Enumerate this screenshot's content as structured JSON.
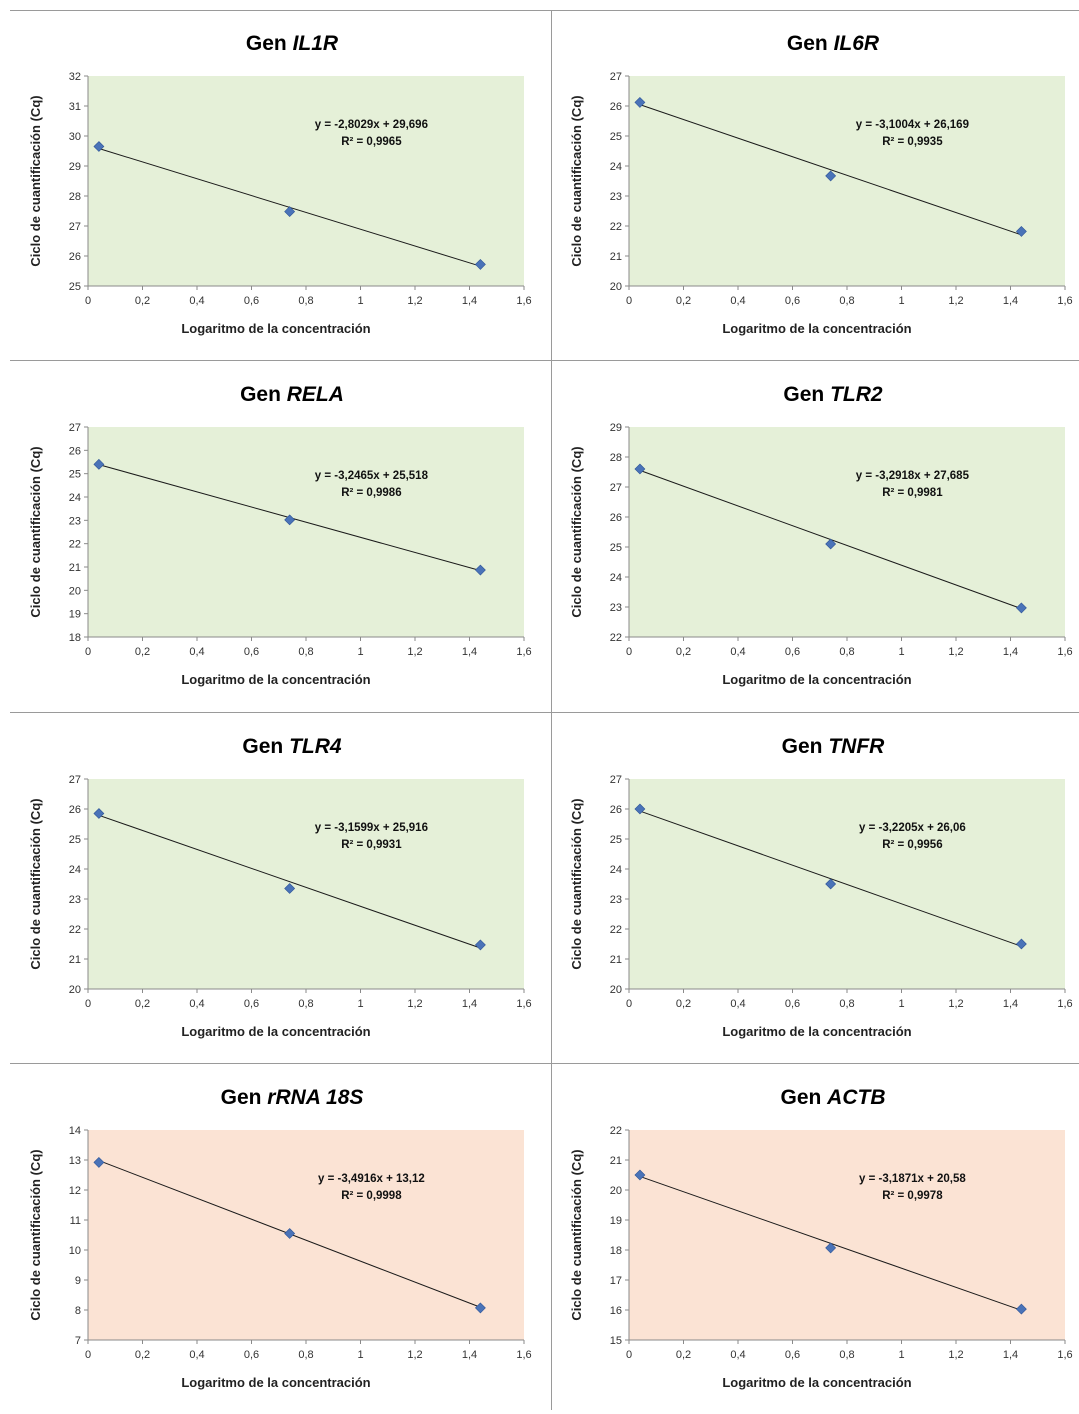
{
  "chart_data": [
    {
      "type": "scatter",
      "title_prefix": "Gen ",
      "title_gene": "IL1R",
      "xlabel": "Logaritmo de la concentración",
      "ylabel": "Ciclo de cuantificación (Cq)",
      "xlim": [
        0,
        1.6
      ],
      "ylim": [
        25,
        32
      ],
      "x_ticks": [
        "0",
        "0,2",
        "0,4",
        "0,6",
        "0,8",
        "1",
        "1,2",
        "1,4",
        "1,6"
      ],
      "y_ticks": [
        "25",
        "26",
        "27",
        "28",
        "29",
        "30",
        "31",
        "32"
      ],
      "series": [
        {
          "x": [
            0.04,
            0.74,
            1.44
          ],
          "y": [
            29.65,
            27.48,
            25.72
          ]
        }
      ],
      "trendline": {
        "slope": -2.8029,
        "intercept": 29.696
      },
      "equation": "y = -2,8029x + 29,696",
      "r_squared": "R² = 0,9965",
      "plot_color": "#e5f0d8",
      "marker_color": "#4a73b8"
    },
    {
      "type": "scatter",
      "title_prefix": "Gen ",
      "title_gene": "IL6R",
      "xlabel": "Logaritmo de la concentración",
      "ylabel": "Ciclo de cuantificación (Cq)",
      "xlim": [
        0,
        1.6
      ],
      "ylim": [
        20,
        27
      ],
      "x_ticks": [
        "0",
        "0,2",
        "0,4",
        "0,6",
        "0,8",
        "1",
        "1,2",
        "1,4",
        "1,6"
      ],
      "y_ticks": [
        "20",
        "21",
        "22",
        "23",
        "24",
        "25",
        "26",
        "27"
      ],
      "series": [
        {
          "x": [
            0.04,
            0.74,
            1.44
          ],
          "y": [
            26.12,
            23.67,
            21.82
          ]
        }
      ],
      "trendline": {
        "slope": -3.1004,
        "intercept": 26.169
      },
      "equation": "y = -3,1004x + 26,169",
      "r_squared": "R² = 0,9935",
      "plot_color": "#e5f0d8",
      "marker_color": "#4a73b8"
    },
    {
      "type": "scatter",
      "title_prefix": "Gen ",
      "title_gene": "RELA",
      "xlabel": "Logaritmo de la concentración",
      "ylabel": "Ciclo de cuantificación (Cq)",
      "xlim": [
        0,
        1.6
      ],
      "ylim": [
        18,
        27
      ],
      "x_ticks": [
        "0",
        "0,2",
        "0,4",
        "0,6",
        "0,8",
        "1",
        "1,2",
        "1,4",
        "1,6"
      ],
      "y_ticks": [
        "18",
        "19",
        "20",
        "21",
        "22",
        "23",
        "24",
        "25",
        "26",
        "27"
      ],
      "series": [
        {
          "x": [
            0.04,
            0.74,
            1.44
          ],
          "y": [
            25.4,
            23.02,
            20.87
          ]
        }
      ],
      "trendline": {
        "slope": -3.2465,
        "intercept": 25.518
      },
      "equation": "y = -3,2465x + 25,518",
      "r_squared": "R² = 0,9986",
      "plot_color": "#e5f0d8",
      "marker_color": "#4a73b8"
    },
    {
      "type": "scatter",
      "title_prefix": "Gen ",
      "title_gene": "TLR2",
      "xlabel": "Logaritmo de la concentración",
      "ylabel": "Ciclo de cuantificación (Cq)",
      "xlim": [
        0,
        1.6
      ],
      "ylim": [
        22,
        29
      ],
      "x_ticks": [
        "0",
        "0,2",
        "0,4",
        "0,6",
        "0,8",
        "1",
        "1,2",
        "1,4",
        "1,6"
      ],
      "y_ticks": [
        "22",
        "23",
        "24",
        "25",
        "26",
        "27",
        "28",
        "29"
      ],
      "series": [
        {
          "x": [
            0.04,
            0.74,
            1.44
          ],
          "y": [
            27.6,
            25.1,
            22.97
          ]
        }
      ],
      "trendline": {
        "slope": -3.2918,
        "intercept": 27.685
      },
      "equation": "y = -3,2918x + 27,685",
      "r_squared": "R² = 0,9981",
      "plot_color": "#e5f0d8",
      "marker_color": "#4a73b8"
    },
    {
      "type": "scatter",
      "title_prefix": "Gen ",
      "title_gene": "TLR4",
      "xlabel": "Logaritmo de la concentración",
      "ylabel": "Ciclo de cuantificación (Cq)",
      "xlim": [
        0,
        1.6
      ],
      "ylim": [
        20,
        27
      ],
      "x_ticks": [
        "0",
        "0,2",
        "0,4",
        "0,6",
        "0,8",
        "1",
        "1,2",
        "1,4",
        "1,6"
      ],
      "y_ticks": [
        "20",
        "21",
        "22",
        "23",
        "24",
        "25",
        "26",
        "27"
      ],
      "series": [
        {
          "x": [
            0.04,
            0.74,
            1.44
          ],
          "y": [
            25.85,
            23.35,
            21.47
          ]
        }
      ],
      "trendline": {
        "slope": -3.1599,
        "intercept": 25.916
      },
      "equation": "y = -3,1599x + 25,916",
      "r_squared": "R² = 0,9931",
      "plot_color": "#e5f0d8",
      "marker_color": "#4a73b8"
    },
    {
      "type": "scatter",
      "title_prefix": "Gen ",
      "title_gene": "TNFR",
      "xlabel": "Logaritmo de la concentración",
      "ylabel": "Ciclo de cuantificación (Cq)",
      "xlim": [
        0,
        1.6
      ],
      "ylim": [
        20,
        27
      ],
      "x_ticks": [
        "0",
        "0,2",
        "0,4",
        "0,6",
        "0,8",
        "1",
        "1,2",
        "1,4",
        "1,6"
      ],
      "y_ticks": [
        "20",
        "21",
        "22",
        "23",
        "24",
        "25",
        "26",
        "27"
      ],
      "series": [
        {
          "x": [
            0.04,
            0.74,
            1.44
          ],
          "y": [
            26.0,
            23.5,
            21.5
          ]
        }
      ],
      "trendline": {
        "slope": -3.2205,
        "intercept": 26.06
      },
      "equation": "y = -3,2205x + 26,06",
      "r_squared": "R² = 0,9956",
      "plot_color": "#e5f0d8",
      "marker_color": "#4a73b8"
    },
    {
      "type": "scatter",
      "title_prefix": "Gen ",
      "title_gene": "rRNA 18S",
      "xlabel": "Logaritmo de la concentración",
      "ylabel": "Ciclo de cuantificación (Cq)",
      "xlim": [
        0,
        1.6
      ],
      "ylim": [
        7,
        14
      ],
      "x_ticks": [
        "0",
        "0,2",
        "0,4",
        "0,6",
        "0,8",
        "1",
        "1,2",
        "1,4",
        "1,6"
      ],
      "y_ticks": [
        "7",
        "8",
        "9",
        "10",
        "11",
        "12",
        "13",
        "14"
      ],
      "series": [
        {
          "x": [
            0.04,
            0.74,
            1.44
          ],
          "y": [
            12.92,
            10.55,
            8.07
          ]
        }
      ],
      "trendline": {
        "slope": -3.4916,
        "intercept": 13.12
      },
      "equation": "y = -3,4916x + 13,12",
      "r_squared": "R² = 0,9998",
      "plot_color": "#fbe3d4",
      "marker_color": "#4a73b8"
    },
    {
      "type": "scatter",
      "title_prefix": "Gen ",
      "title_gene": "ACTB",
      "xlabel": "Logaritmo de la concentración",
      "ylabel": "Ciclo de cuantificación (Cq)",
      "xlim": [
        0,
        1.6
      ],
      "ylim": [
        15,
        22
      ],
      "x_ticks": [
        "0",
        "0,2",
        "0,4",
        "0,6",
        "0,8",
        "1",
        "1,2",
        "1,4",
        "1,6"
      ],
      "y_ticks": [
        "15",
        "16",
        "17",
        "18",
        "19",
        "20",
        "21",
        "22"
      ],
      "series": [
        {
          "x": [
            0.04,
            0.74,
            1.44
          ],
          "y": [
            20.5,
            18.07,
            16.03
          ]
        }
      ],
      "trendline": {
        "slope": -3.1871,
        "intercept": 20.58
      },
      "equation": "y = -3,1871x + 20,58",
      "r_squared": "R² = 0,9978",
      "plot_color": "#fbe3d4",
      "marker_color": "#4a73b8"
    }
  ]
}
